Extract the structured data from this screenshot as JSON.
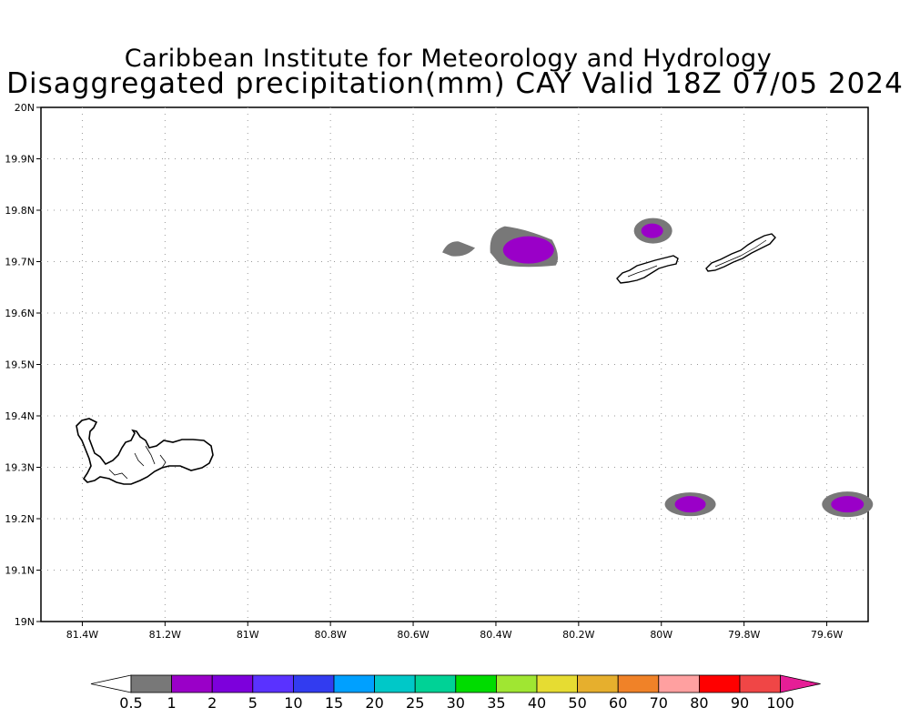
{
  "header": {
    "title": "Caribbean Institute for Meteorology and Hydrology",
    "subtitle": "Disaggregated precipitation(mm) CAY Valid 18Z 07/05 2024"
  },
  "map": {
    "lon_range": [
      -81.5,
      -79.5
    ],
    "lat_range": [
      19.0,
      20.0
    ],
    "grid": "dotted",
    "lat_labels": [
      "19N",
      "19.1N",
      "19.2N",
      "19.3N",
      "19.4N",
      "19.5N",
      "19.6N",
      "19.7N",
      "19.8N",
      "19.9N",
      "20N"
    ],
    "lon_labels": [
      "81.4W",
      "81.2W",
      "81W",
      "80.8W",
      "80.6W",
      "80.4W",
      "80.2W",
      "80W",
      "79.8W",
      "79.6W"
    ],
    "islands": [
      "Grand Cayman",
      "Little Cayman",
      "Cayman Brac"
    ],
    "precip_cells": [
      {
        "lon": -80.49,
        "lat": 19.725,
        "max_class": "0.5"
      },
      {
        "lon": -80.33,
        "lat": 19.728,
        "max_class": "1"
      },
      {
        "lon": -80.02,
        "lat": 19.76,
        "max_class": "1"
      },
      {
        "lon": -79.93,
        "lat": 19.228,
        "max_class": "1"
      },
      {
        "lon": -79.55,
        "lat": 19.228,
        "max_class": "1"
      }
    ]
  },
  "colorbar": {
    "labels": [
      "0.5",
      "1",
      "2",
      "5",
      "10",
      "15",
      "20",
      "25",
      "30",
      "35",
      "40",
      "50",
      "60",
      "70",
      "80",
      "90",
      "100"
    ],
    "colors": [
      "#ffffff",
      "#787878",
      "#9a00c8",
      "#7d00dc",
      "#5a32ff",
      "#323cf0",
      "#00a0ff",
      "#00c8c8",
      "#00d296",
      "#00dc00",
      "#a0e632",
      "#e6dc32",
      "#e6af2d",
      "#f08228",
      "#ffa0a0",
      "#ff0000",
      "#f04646",
      "#e61e96"
    ]
  }
}
